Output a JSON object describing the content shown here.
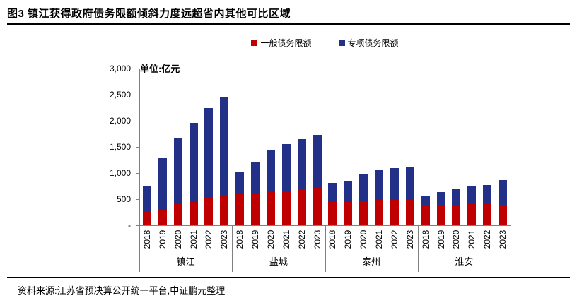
{
  "title": "图3 镇江获得政府债务限额倾斜力度远超省内其他可比区域",
  "unit_label": "单位:亿元",
  "source": "资料来源:江苏省预决算公开统一平台,中证鹏元整理",
  "legend": [
    {
      "label": "一般债务限额",
      "color": "#C00000"
    },
    {
      "label": "专项债务限额",
      "color": "#233087"
    }
  ],
  "colors": {
    "general": "#C00000",
    "special": "#233087",
    "axis": "#808080",
    "rule": "#000000",
    "text": "#000000"
  },
  "chart_data": {
    "type": "bar",
    "stacked": true,
    "title": "镇江获得政府债务限额倾斜力度远超省内其他可比区域",
    "unit": "亿元",
    "ylim": [
      0,
      3000
    ],
    "ytick_step": 500,
    "ytick_labels": [
      "-",
      "500",
      "1,000",
      "1,500",
      "2,000",
      "2,500",
      "3,000"
    ],
    "legend_position": "top",
    "grid": false,
    "groups": [
      {
        "id": "zhenjiang",
        "label": "镇江"
      },
      {
        "id": "yancheng",
        "label": "盐城"
      },
      {
        "id": "taizhou",
        "label": "泰州"
      },
      {
        "id": "huaian",
        "label": "淮安"
      }
    ],
    "years": [
      "2018",
      "2019",
      "2020",
      "2021",
      "2022",
      "2023"
    ],
    "series": [
      {
        "name": "一般债务限额",
        "color": "#C00000",
        "values": {
          "zhenjiang": [
            260,
            300,
            400,
            450,
            510,
            550
          ],
          "yancheng": [
            600,
            610,
            650,
            665,
            690,
            710
          ],
          "taizhou": [
            445,
            450,
            470,
            490,
            490,
            480
          ],
          "huaian": [
            375,
            390,
            385,
            400,
            410,
            390
          ]
        }
      },
      {
        "name": "专项债务限额",
        "color": "#233087",
        "values": {
          "zhenjiang": [
            480,
            980,
            1270,
            1510,
            1740,
            1900
          ],
          "yancheng": [
            430,
            610,
            800,
            885,
            955,
            1025
          ],
          "taizhou": [
            360,
            395,
            520,
            560,
            600,
            625
          ],
          "huaian": [
            180,
            245,
            320,
            350,
            360,
            475
          ]
        }
      }
    ],
    "totals": {
      "zhenjiang": [
        740,
        1280,
        1670,
        1960,
        2250,
        2450
      ],
      "yancheng": [
        1030,
        1220,
        1450,
        1550,
        1645,
        1735
      ],
      "taizhou": [
        805,
        845,
        990,
        1050,
        1090,
        1105
      ],
      "huaian": [
        555,
        635,
        705,
        750,
        770,
        865
      ]
    }
  }
}
